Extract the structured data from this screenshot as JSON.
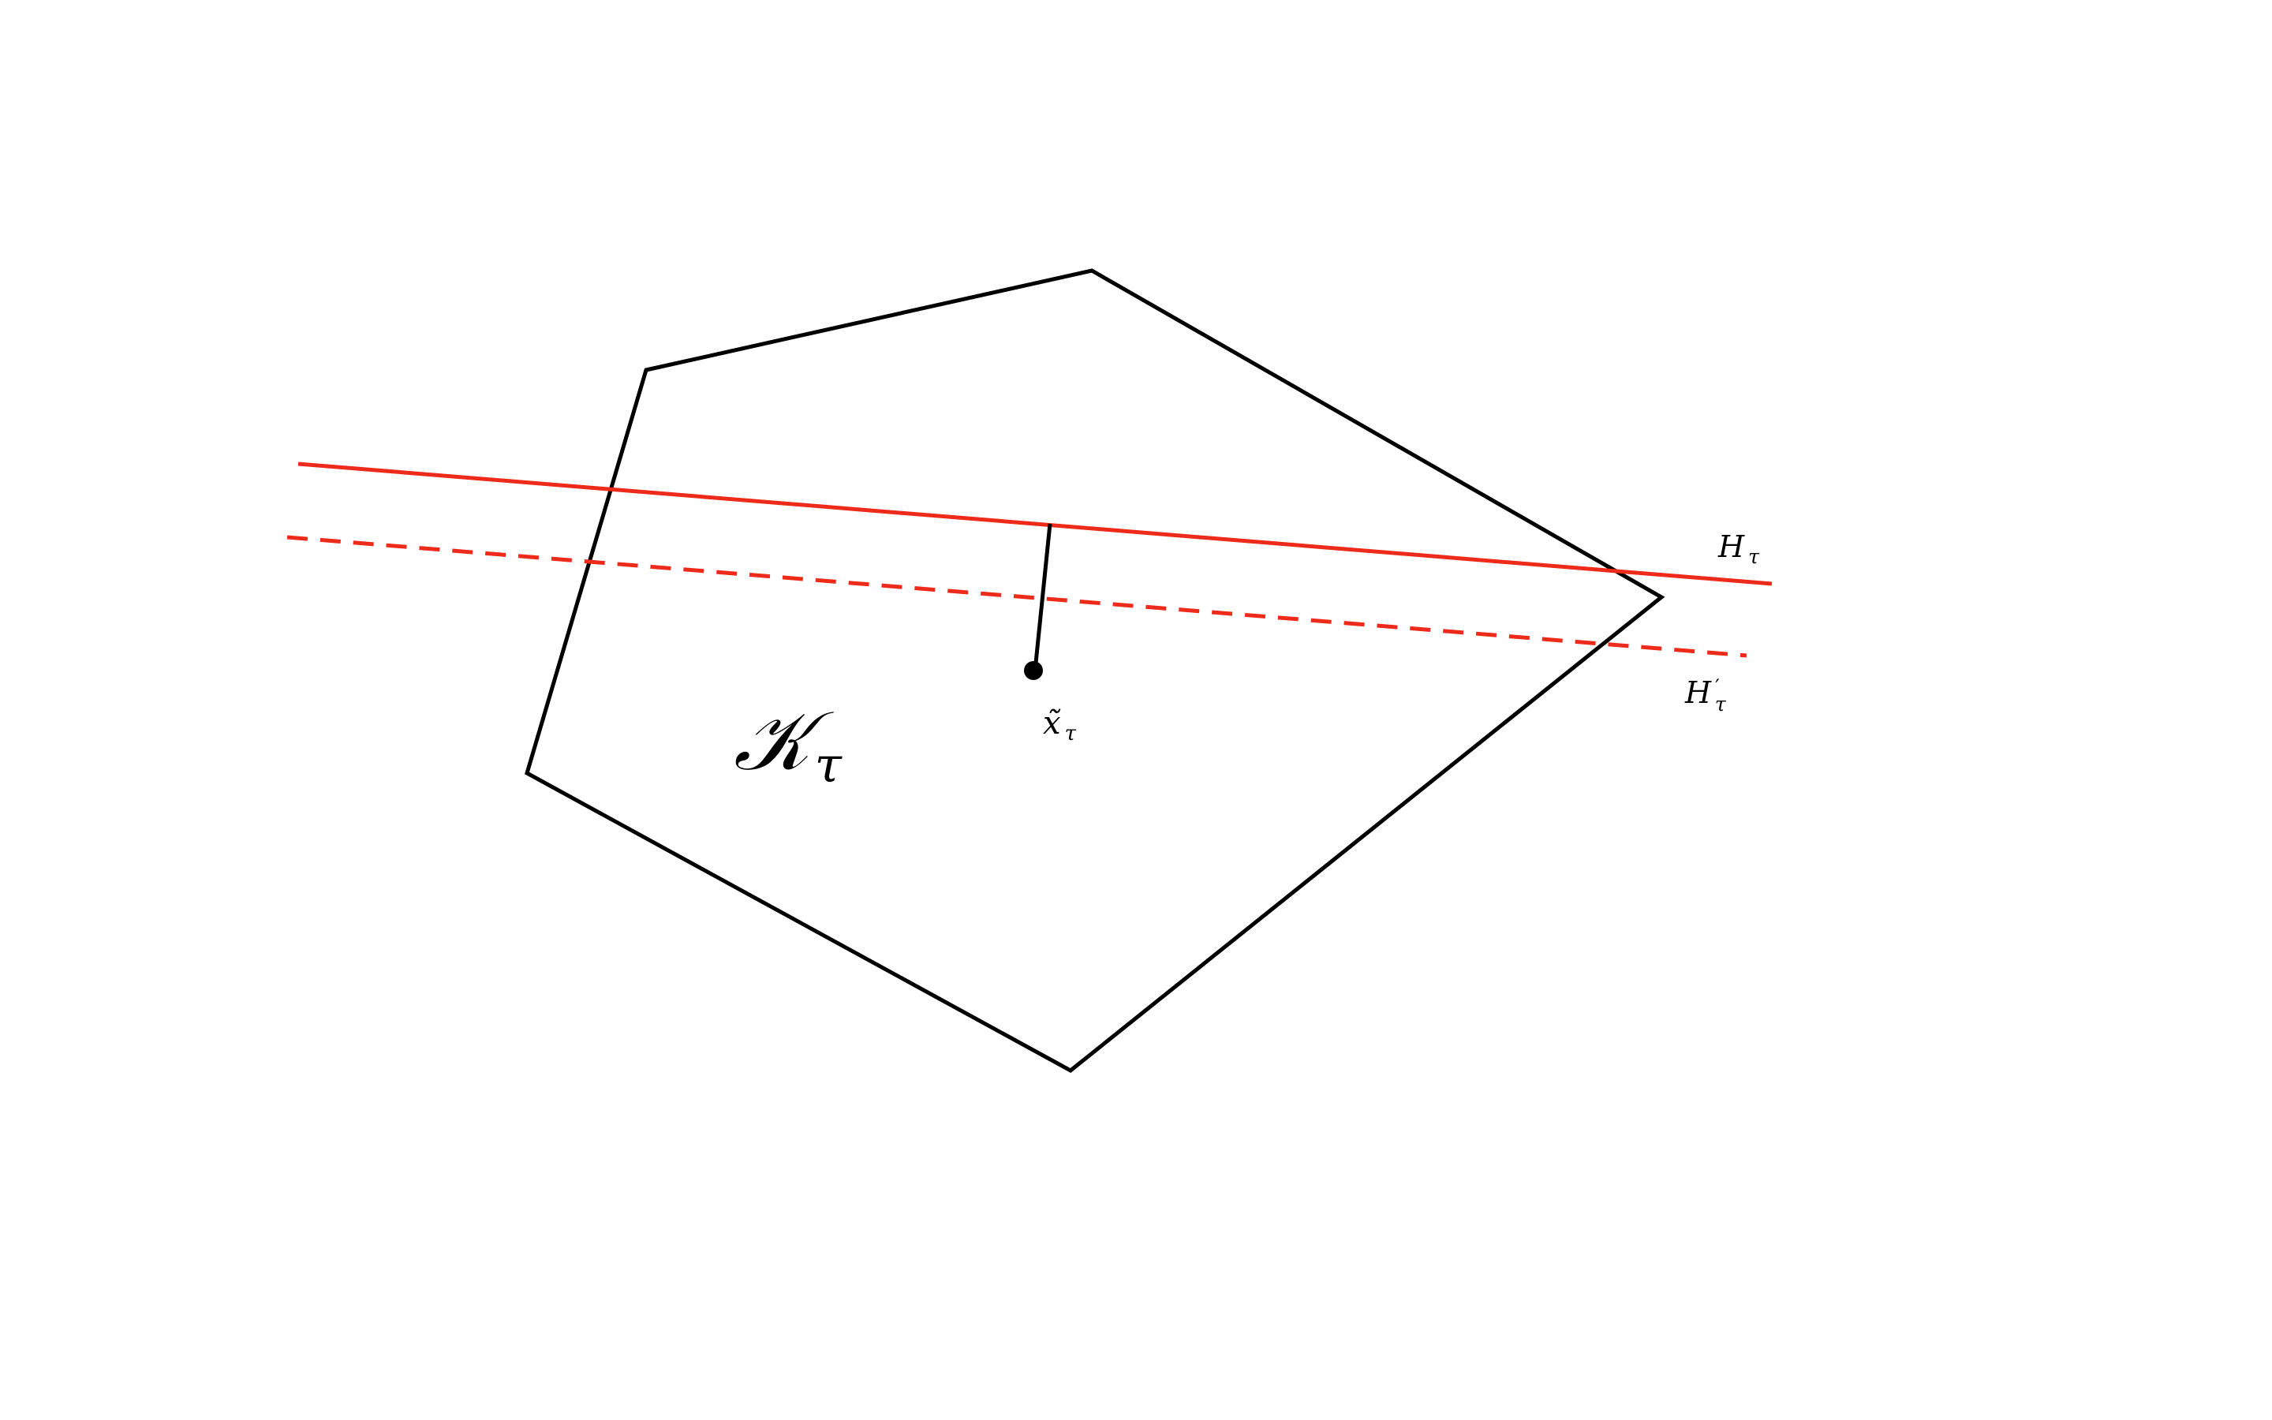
{
  "labels": {
    "set": {
      "main": "𝒦",
      "sub": "τ"
    },
    "point": {
      "main": "x̃",
      "sub": "τ"
    },
    "hyperplane": {
      "main": "H",
      "sub": "τ"
    },
    "hyperplane_shifted": {
      "main": "H",
      "prime": "′",
      "sub": "τ"
    }
  },
  "colors": {
    "polygon": "#000000",
    "hyperplane": "#ee2a1b",
    "point": "#000000"
  }
}
